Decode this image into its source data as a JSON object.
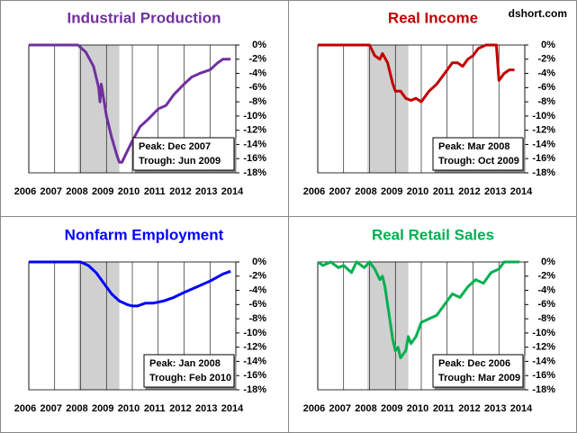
{
  "chart_data": [
    {
      "type": "line",
      "title": "Industrial Production",
      "title_color": "#7030a0",
      "x": [
        2006,
        2006.5,
        2007,
        2007.5,
        2007.9,
        2008.2,
        2008.5,
        2008.7,
        2008.75,
        2008.8,
        2009.0,
        2009.2,
        2009.4,
        2009.5,
        2009.6,
        2009.8,
        2010.0,
        2010.3,
        2010.6,
        2011.0,
        2011.3,
        2011.6,
        2012.0,
        2012.3,
        2012.6,
        2013.0,
        2013.3,
        2013.5,
        2013.8
      ],
      "series": [
        {
          "color": "#7030a0",
          "values": [
            0,
            0,
            0,
            0,
            0,
            -1,
            -3,
            -6,
            -8,
            -5.5,
            -10,
            -13,
            -15.5,
            -16.5,
            -16.5,
            -15,
            -13.5,
            -11.5,
            -10.5,
            -9,
            -8.5,
            -7,
            -5.5,
            -4.5,
            -4,
            -3.5,
            -2.5,
            -2,
            -2
          ]
        }
      ],
      "recession": [
        2007.92,
        2009.5
      ],
      "annotations": [
        "Peak: Dec 2007",
        "Trough: Jun 2009"
      ],
      "xlim": [
        2006,
        2014
      ],
      "xticks": [
        2006,
        2007,
        2008,
        2009,
        2010,
        2011,
        2012,
        2013,
        2014
      ],
      "ylim": [
        0,
        -18
      ],
      "yticks": [
        {
          "value": 0,
          "label": "0%"
        },
        {
          "value": -2,
          "label": "-2%"
        },
        {
          "value": -4,
          "label": "-4%"
        },
        {
          "value": -6,
          "label": "-6%"
        },
        {
          "value": -8,
          "label": "-8%"
        },
        {
          "value": -10,
          "label": "-10%"
        },
        {
          "value": -12,
          "label": "-12%"
        },
        {
          "value": -14,
          "label": "-14%"
        },
        {
          "value": -16,
          "label": "-16%"
        },
        {
          "value": -18,
          "label": "-18%"
        }
      ],
      "grid": "x"
    },
    {
      "type": "line",
      "title": "Real Income",
      "title_color": "#c00000",
      "x": [
        2006,
        2008,
        2008.2,
        2008.4,
        2008.5,
        2008.7,
        2008.9,
        2009.0,
        2009.2,
        2009.4,
        2009.6,
        2009.8,
        2010.0,
        2010.3,
        2010.6,
        2010.9,
        2011.2,
        2011.4,
        2011.6,
        2011.8,
        2012.0,
        2012.2,
        2012.5,
        2012.9,
        2013.0,
        2013.2,
        2013.4,
        2013.6
      ],
      "series": [
        {
          "color": "#c00000",
          "values": [
            0,
            0,
            -1.5,
            -2,
            -1.2,
            -2.5,
            -5.5,
            -6.5,
            -6.5,
            -7.5,
            -7.8,
            -7.5,
            -8,
            -6.5,
            -5.5,
            -4,
            -2.5,
            -2.5,
            -3,
            -2,
            -1.5,
            -0.5,
            0,
            0,
            -5,
            -4,
            -3.5,
            -3.5
          ]
        }
      ],
      "recession": [
        2007.92,
        2009.5
      ],
      "annotations": [
        "Peak: Mar 2008",
        "Trough: Oct 2009"
      ],
      "xlim": [
        2006,
        2014
      ],
      "xticks": [
        2006,
        2007,
        2008,
        2009,
        2010,
        2011,
        2012,
        2013,
        2014
      ],
      "ylim": [
        0,
        -18
      ],
      "yticks": [
        {
          "value": 0,
          "label": "0%"
        },
        {
          "value": -2,
          "label": "-2%"
        },
        {
          "value": -4,
          "label": "-4%"
        },
        {
          "value": -6,
          "label": "-6%"
        },
        {
          "value": -8,
          "label": "-8%"
        },
        {
          "value": -10,
          "label": "-10%"
        },
        {
          "value": -12,
          "label": "-12%"
        },
        {
          "value": -14,
          "label": "-14%"
        },
        {
          "value": -16,
          "label": "-16%"
        },
        {
          "value": -18,
          "label": "-18%"
        }
      ],
      "grid": "x"
    },
    {
      "type": "line",
      "title": "Nonfarm Employment",
      "title_color": "#0000ff",
      "x": [
        2006,
        2008,
        2008.3,
        2008.6,
        2008.9,
        2009.2,
        2009.5,
        2009.8,
        2010.0,
        2010.2,
        2010.5,
        2010.8,
        2011.2,
        2011.6,
        2012.0,
        2012.5,
        2013.0,
        2013.5,
        2013.8
      ],
      "series": [
        {
          "color": "#0000ff",
          "values": [
            0,
            0,
            -0.5,
            -1.5,
            -3,
            -4.5,
            -5.5,
            -6,
            -6.2,
            -6.2,
            -5.8,
            -5.8,
            -5.5,
            -5,
            -4.3,
            -3.5,
            -2.7,
            -1.7,
            -1.3
          ]
        }
      ],
      "recession": [
        2007.92,
        2009.5
      ],
      "annotations": [
        "Peak: Jan 2008",
        "Trough: Feb 2010"
      ],
      "xlim": [
        2006,
        2014
      ],
      "xticks": [
        2006,
        2007,
        2008,
        2009,
        2010,
        2011,
        2012,
        2013,
        2014
      ],
      "ylim": [
        0,
        -18
      ],
      "yticks": [
        {
          "value": 0,
          "label": "0%"
        },
        {
          "value": -2,
          "label": "-2%"
        },
        {
          "value": -4,
          "label": "-4%"
        },
        {
          "value": -6,
          "label": "-6%"
        },
        {
          "value": -8,
          "label": "-8%"
        },
        {
          "value": -10,
          "label": "-10%"
        },
        {
          "value": -12,
          "label": "-12%"
        },
        {
          "value": -14,
          "label": "-14%"
        },
        {
          "value": -16,
          "label": "-16%"
        },
        {
          "value": -18,
          "label": "-18%"
        }
      ],
      "grid": "x"
    },
    {
      "type": "line",
      "title": "Real Retail Sales",
      "title_color": "#00b050",
      "x": [
        2006,
        2006.2,
        2006.5,
        2006.8,
        2007.0,
        2007.3,
        2007.5,
        2007.8,
        2008.0,
        2008.2,
        2008.4,
        2008.5,
        2008.6,
        2008.7,
        2008.8,
        2008.9,
        2009.0,
        2009.1,
        2009.2,
        2009.4,
        2009.5,
        2009.6,
        2009.8,
        2010.0,
        2010.3,
        2010.6,
        2010.9,
        2011.2,
        2011.5,
        2011.8,
        2012.1,
        2012.4,
        2012.7,
        2013.0,
        2013.2,
        2013.5,
        2013.8
      ],
      "series": [
        {
          "color": "#00b050",
          "values": [
            0,
            -0.5,
            0,
            -0.8,
            -0.5,
            -1.5,
            0,
            -0.8,
            0,
            -1,
            -2.5,
            -2,
            -3.5,
            -6,
            -8.5,
            -11,
            -12.5,
            -12,
            -13.5,
            -12.5,
            -10.5,
            -11.5,
            -10.5,
            -8.5,
            -8,
            -7.5,
            -6,
            -4.5,
            -5,
            -3.5,
            -2.5,
            -3,
            -1.5,
            -1,
            0,
            0,
            0
          ]
        }
      ],
      "recession": [
        2007.92,
        2009.5
      ],
      "annotations": [
        "Peak: Dec 2006",
        "Trough: Mar 2009"
      ],
      "xlim": [
        2006,
        2014
      ],
      "xticks": [
        2006,
        2007,
        2008,
        2009,
        2010,
        2011,
        2012,
        2013,
        2014
      ],
      "ylim": [
        0,
        -18
      ],
      "yticks": [
        {
          "value": 0,
          "label": "0%"
        },
        {
          "value": -2,
          "label": "-2%"
        },
        {
          "value": -4,
          "label": "-4%"
        },
        {
          "value": -6,
          "label": "-6%"
        },
        {
          "value": -8,
          "label": "-8%"
        },
        {
          "value": -10,
          "label": "-10%"
        },
        {
          "value": -12,
          "label": "-12%"
        },
        {
          "value": -14,
          "label": "-14%"
        },
        {
          "value": -16,
          "label": "-16%"
        },
        {
          "value": -18,
          "label": "-18%"
        }
      ],
      "grid": "x"
    }
  ],
  "watermark": "dshort.com"
}
